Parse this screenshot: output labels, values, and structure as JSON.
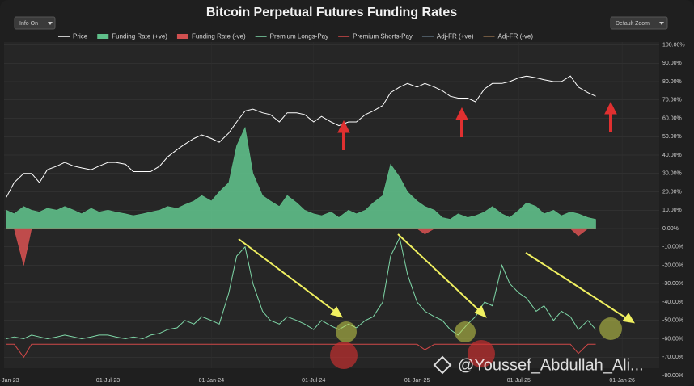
{
  "chart_data": {
    "type": "line",
    "title": "Bitcoin Perpetual Futures Funding Rates",
    "controls": {
      "info": "Info On",
      "zoom": "Default Zoom"
    },
    "watermark": "@Youssef_Abdullah_Ali...",
    "x": [
      "2023-01-01",
      "2023-01-15",
      "2023-02-01",
      "2023-02-15",
      "2023-03-01",
      "2023-03-15",
      "2023-04-01",
      "2023-04-15",
      "2023-05-01",
      "2023-05-15",
      "2023-06-01",
      "2023-06-15",
      "2023-07-01",
      "2023-07-15",
      "2023-08-01",
      "2023-08-15",
      "2023-09-01",
      "2023-09-15",
      "2023-10-01",
      "2023-10-15",
      "2023-11-01",
      "2023-11-15",
      "2023-12-01",
      "2023-12-15",
      "2024-01-01",
      "2024-01-15",
      "2024-02-01",
      "2024-02-15",
      "2024-03-01",
      "2024-03-15",
      "2024-04-01",
      "2024-04-15",
      "2024-05-01",
      "2024-05-15",
      "2024-06-01",
      "2024-06-15",
      "2024-07-01",
      "2024-07-15",
      "2024-08-01",
      "2024-08-15",
      "2024-09-01",
      "2024-09-15",
      "2024-10-01",
      "2024-10-15",
      "2024-11-01",
      "2024-11-15",
      "2024-12-01",
      "2024-12-15",
      "2025-01-01",
      "2025-01-15",
      "2025-02-01",
      "2025-02-15",
      "2025-03-01",
      "2025-03-15",
      "2025-04-01",
      "2025-04-15",
      "2025-05-01",
      "2025-05-15",
      "2025-06-01",
      "2025-06-15",
      "2025-07-01",
      "2025-07-15",
      "2025-08-01",
      "2025-08-15",
      "2025-09-01",
      "2025-09-15",
      "2025-10-01",
      "2025-10-15",
      "2025-11-01",
      "2025-11-15"
    ],
    "xlim": [
      "2022-12-28",
      "2026-03-08"
    ],
    "xticks": [
      {
        "value": "2023-01-01",
        "label": "01-Jan-23"
      },
      {
        "value": "2023-07-01",
        "label": "01-Jul-23"
      },
      {
        "value": "2024-01-01",
        "label": "01-Jan-24"
      },
      {
        "value": "2024-07-01",
        "label": "01-Jul-24"
      },
      {
        "value": "2025-01-01",
        "label": "01-Jan-25"
      },
      {
        "value": "2025-07-01",
        "label": "01-Jul-25"
      },
      {
        "value": "2026-01-01",
        "label": "01-Jan-26"
      }
    ],
    "ylim": [
      -80,
      100
    ],
    "yticks": [
      {
        "value": 100,
        "label": "100.00%"
      },
      {
        "value": 90,
        "label": "90.00%"
      },
      {
        "value": 80,
        "label": "80.00%"
      },
      {
        "value": 70,
        "label": "70.00%"
      },
      {
        "value": 60,
        "label": "60.00%"
      },
      {
        "value": 50,
        "label": "50.00%"
      },
      {
        "value": 40,
        "label": "40.00%"
      },
      {
        "value": 30,
        "label": "30.00%"
      },
      {
        "value": 20,
        "label": "20.00%"
      },
      {
        "value": 10,
        "label": "10.00%"
      },
      {
        "value": 0,
        "label": "0.00%"
      },
      {
        "value": -10,
        "label": "-10.00%"
      },
      {
        "value": -20,
        "label": "-20.00%"
      },
      {
        "value": -30,
        "label": "-30.00%"
      },
      {
        "value": -40,
        "label": "-40.00%"
      },
      {
        "value": -50,
        "label": "-50.00%"
      },
      {
        "value": -60,
        "label": "-60.00%"
      },
      {
        "value": -70,
        "label": "-70.00%"
      },
      {
        "value": -80,
        "label": "-80.00%"
      }
    ],
    "grid": true,
    "series": [
      {
        "name": "Price",
        "color": "#ffffff",
        "kind": "line",
        "values": [
          17,
          25,
          30,
          30,
          25,
          32,
          34,
          36,
          34,
          33,
          32,
          34,
          36,
          36,
          35,
          31,
          31,
          31,
          34,
          39,
          43,
          46,
          49,
          51,
          49,
          47,
          52,
          58,
          64,
          65,
          63,
          62,
          58,
          63,
          63,
          62,
          58,
          61,
          58,
          56,
          58,
          58,
          62,
          64,
          67,
          74,
          77,
          79,
          77,
          79,
          77,
          75,
          72,
          71,
          71,
          69,
          76,
          79,
          79,
          80,
          82,
          83,
          82,
          81,
          80,
          80,
          83,
          77,
          74,
          72
        ]
      },
      {
        "name": "Funding Rate (+ve)",
        "color": "#5fbf8a",
        "kind": "area",
        "values": [
          10,
          8,
          12,
          10,
          9,
          11,
          10,
          12,
          10,
          8,
          11,
          9,
          10,
          9,
          8,
          7,
          8,
          9,
          10,
          12,
          11,
          13,
          15,
          18,
          15,
          20,
          25,
          45,
          55,
          30,
          18,
          15,
          12,
          18,
          14,
          10,
          8,
          7,
          9,
          6,
          10,
          8,
          10,
          14,
          18,
          35,
          28,
          20,
          15,
          12,
          10,
          6,
          5,
          8,
          6,
          7,
          9,
          12,
          8,
          6,
          10,
          14,
          12,
          8,
          10,
          7,
          9,
          8,
          6,
          5
        ]
      },
      {
        "name": "Funding Rate (-ve)",
        "color": "#d05050",
        "kind": "area",
        "values": [
          0,
          0,
          -20,
          0,
          0,
          0,
          0,
          0,
          0,
          0,
          0,
          0,
          0,
          0,
          0,
          0,
          0,
          0,
          0,
          0,
          0,
          0,
          0,
          0,
          0,
          0,
          0,
          0,
          0,
          0,
          0,
          0,
          0,
          0,
          0,
          0,
          0,
          0,
          0,
          0,
          0,
          0,
          0,
          0,
          0,
          0,
          0,
          0,
          0,
          -3,
          0,
          0,
          0,
          0,
          0,
          0,
          0,
          0,
          0,
          0,
          0,
          0,
          0,
          0,
          0,
          0,
          0,
          -4,
          0,
          0
        ]
      },
      {
        "name": "Premium Longs-Pay",
        "color": "#7fd8a8",
        "kind": "line",
        "values": [
          -60,
          -59,
          -60,
          -58,
          -59,
          -60,
          -59,
          -58,
          -59,
          -60,
          -59,
          -58,
          -58,
          -59,
          -60,
          -59,
          -60,
          -58,
          -57,
          -55,
          -54,
          -50,
          -52,
          -48,
          -50,
          -52,
          -35,
          -15,
          -10,
          -30,
          -45,
          -50,
          -52,
          -48,
          -50,
          -52,
          -55,
          -50,
          -53,
          -55,
          -52,
          -54,
          -50,
          -48,
          -40,
          -15,
          -5,
          -25,
          -40,
          -45,
          -48,
          -50,
          -55,
          -58,
          -52,
          -48,
          -40,
          -42,
          -20,
          -30,
          -35,
          -38,
          -45,
          -42,
          -50,
          -45,
          -48,
          -55,
          -50,
          -55
        ]
      },
      {
        "name": "Premium Shorts-Pay",
        "color": "#d04848",
        "kind": "line",
        "values": [
          -63,
          -63,
          -70,
          -63,
          -63,
          -63,
          -63,
          -63,
          -63,
          -63,
          -63,
          -63,
          -63,
          -63,
          -63,
          -63,
          -63,
          -63,
          -63,
          -63,
          -63,
          -63,
          -63,
          -63,
          -63,
          -63,
          -63,
          -63,
          -63,
          -63,
          -63,
          -63,
          -63,
          -63,
          -63,
          -63,
          -63,
          -63,
          -63,
          -63,
          -63,
          -63,
          -63,
          -63,
          -63,
          -63,
          -63,
          -63,
          -63,
          -66,
          -63,
          -63,
          -63,
          -63,
          -63,
          -63,
          -63,
          -63,
          -63,
          -63,
          -63,
          -63,
          -63,
          -63,
          -63,
          -63,
          -63,
          -68,
          -63,
          -63
        ]
      },
      {
        "name": "Adj-FR (+ve)",
        "color": "#5a6b78",
        "kind": "line"
      },
      {
        "name": "Adj-FR (-ve)",
        "color": "#8a6a4a",
        "kind": "line"
      }
    ]
  }
}
